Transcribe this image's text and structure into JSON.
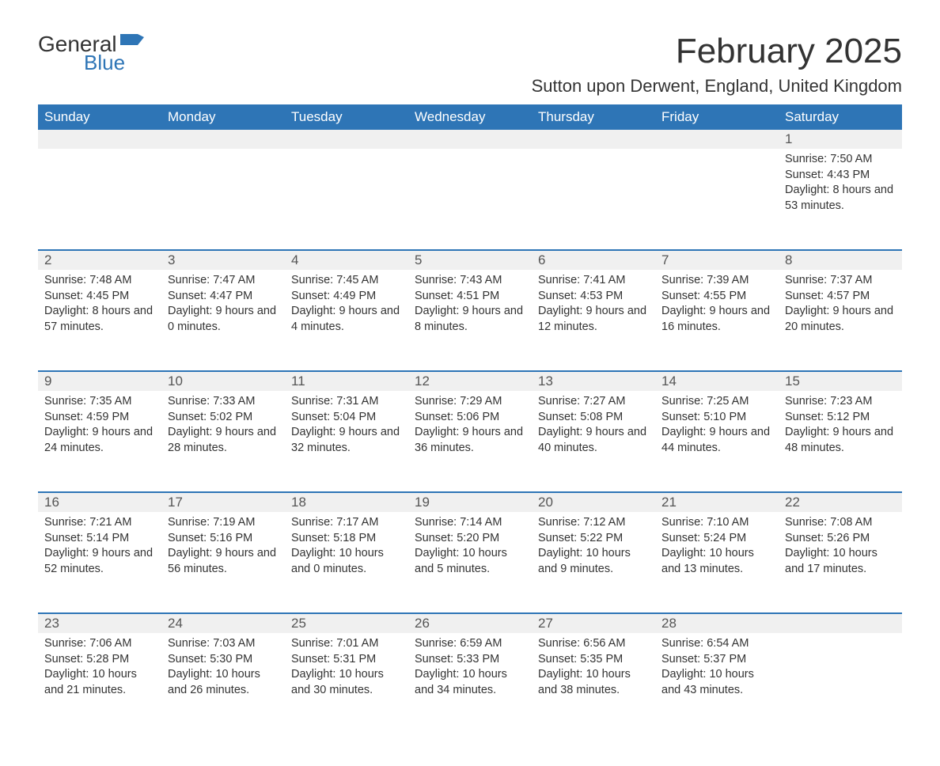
{
  "brand": {
    "part1": "General",
    "part2": "Blue",
    "text_color": "#333333",
    "accent_color": "#2e75b6"
  },
  "title": "February 2025",
  "location": "Sutton upon Derwent, England, United Kingdom",
  "colors": {
    "header_bg": "#2e75b6",
    "header_text": "#ffffff",
    "daynum_bg": "#f0f0f0",
    "row_border": "#2e75b6",
    "body_text": "#333333",
    "page_bg": "#ffffff"
  },
  "weekdays": [
    "Sunday",
    "Monday",
    "Tuesday",
    "Wednesday",
    "Thursday",
    "Friday",
    "Saturday"
  ],
  "weeks": [
    [
      null,
      null,
      null,
      null,
      null,
      null,
      {
        "d": "1",
        "sunrise": "Sunrise: 7:50 AM",
        "sunset": "Sunset: 4:43 PM",
        "daylight": "Daylight: 8 hours and 53 minutes."
      }
    ],
    [
      {
        "d": "2",
        "sunrise": "Sunrise: 7:48 AM",
        "sunset": "Sunset: 4:45 PM",
        "daylight": "Daylight: 8 hours and 57 minutes."
      },
      {
        "d": "3",
        "sunrise": "Sunrise: 7:47 AM",
        "sunset": "Sunset: 4:47 PM",
        "daylight": "Daylight: 9 hours and 0 minutes."
      },
      {
        "d": "4",
        "sunrise": "Sunrise: 7:45 AM",
        "sunset": "Sunset: 4:49 PM",
        "daylight": "Daylight: 9 hours and 4 minutes."
      },
      {
        "d": "5",
        "sunrise": "Sunrise: 7:43 AM",
        "sunset": "Sunset: 4:51 PM",
        "daylight": "Daylight: 9 hours and 8 minutes."
      },
      {
        "d": "6",
        "sunrise": "Sunrise: 7:41 AM",
        "sunset": "Sunset: 4:53 PM",
        "daylight": "Daylight: 9 hours and 12 minutes."
      },
      {
        "d": "7",
        "sunrise": "Sunrise: 7:39 AM",
        "sunset": "Sunset: 4:55 PM",
        "daylight": "Daylight: 9 hours and 16 minutes."
      },
      {
        "d": "8",
        "sunrise": "Sunrise: 7:37 AM",
        "sunset": "Sunset: 4:57 PM",
        "daylight": "Daylight: 9 hours and 20 minutes."
      }
    ],
    [
      {
        "d": "9",
        "sunrise": "Sunrise: 7:35 AM",
        "sunset": "Sunset: 4:59 PM",
        "daylight": "Daylight: 9 hours and 24 minutes."
      },
      {
        "d": "10",
        "sunrise": "Sunrise: 7:33 AM",
        "sunset": "Sunset: 5:02 PM",
        "daylight": "Daylight: 9 hours and 28 minutes."
      },
      {
        "d": "11",
        "sunrise": "Sunrise: 7:31 AM",
        "sunset": "Sunset: 5:04 PM",
        "daylight": "Daylight: 9 hours and 32 minutes."
      },
      {
        "d": "12",
        "sunrise": "Sunrise: 7:29 AM",
        "sunset": "Sunset: 5:06 PM",
        "daylight": "Daylight: 9 hours and 36 minutes."
      },
      {
        "d": "13",
        "sunrise": "Sunrise: 7:27 AM",
        "sunset": "Sunset: 5:08 PM",
        "daylight": "Daylight: 9 hours and 40 minutes."
      },
      {
        "d": "14",
        "sunrise": "Sunrise: 7:25 AM",
        "sunset": "Sunset: 5:10 PM",
        "daylight": "Daylight: 9 hours and 44 minutes."
      },
      {
        "d": "15",
        "sunrise": "Sunrise: 7:23 AM",
        "sunset": "Sunset: 5:12 PM",
        "daylight": "Daylight: 9 hours and 48 minutes."
      }
    ],
    [
      {
        "d": "16",
        "sunrise": "Sunrise: 7:21 AM",
        "sunset": "Sunset: 5:14 PM",
        "daylight": "Daylight: 9 hours and 52 minutes."
      },
      {
        "d": "17",
        "sunrise": "Sunrise: 7:19 AM",
        "sunset": "Sunset: 5:16 PM",
        "daylight": "Daylight: 9 hours and 56 minutes."
      },
      {
        "d": "18",
        "sunrise": "Sunrise: 7:17 AM",
        "sunset": "Sunset: 5:18 PM",
        "daylight": "Daylight: 10 hours and 0 minutes."
      },
      {
        "d": "19",
        "sunrise": "Sunrise: 7:14 AM",
        "sunset": "Sunset: 5:20 PM",
        "daylight": "Daylight: 10 hours and 5 minutes."
      },
      {
        "d": "20",
        "sunrise": "Sunrise: 7:12 AM",
        "sunset": "Sunset: 5:22 PM",
        "daylight": "Daylight: 10 hours and 9 minutes."
      },
      {
        "d": "21",
        "sunrise": "Sunrise: 7:10 AM",
        "sunset": "Sunset: 5:24 PM",
        "daylight": "Daylight: 10 hours and 13 minutes."
      },
      {
        "d": "22",
        "sunrise": "Sunrise: 7:08 AM",
        "sunset": "Sunset: 5:26 PM",
        "daylight": "Daylight: 10 hours and 17 minutes."
      }
    ],
    [
      {
        "d": "23",
        "sunrise": "Sunrise: 7:06 AM",
        "sunset": "Sunset: 5:28 PM",
        "daylight": "Daylight: 10 hours and 21 minutes."
      },
      {
        "d": "24",
        "sunrise": "Sunrise: 7:03 AM",
        "sunset": "Sunset: 5:30 PM",
        "daylight": "Daylight: 10 hours and 26 minutes."
      },
      {
        "d": "25",
        "sunrise": "Sunrise: 7:01 AM",
        "sunset": "Sunset: 5:31 PM",
        "daylight": "Daylight: 10 hours and 30 minutes."
      },
      {
        "d": "26",
        "sunrise": "Sunrise: 6:59 AM",
        "sunset": "Sunset: 5:33 PM",
        "daylight": "Daylight: 10 hours and 34 minutes."
      },
      {
        "d": "27",
        "sunrise": "Sunrise: 6:56 AM",
        "sunset": "Sunset: 5:35 PM",
        "daylight": "Daylight: 10 hours and 38 minutes."
      },
      {
        "d": "28",
        "sunrise": "Sunrise: 6:54 AM",
        "sunset": "Sunset: 5:37 PM",
        "daylight": "Daylight: 10 hours and 43 minutes."
      },
      null
    ]
  ]
}
